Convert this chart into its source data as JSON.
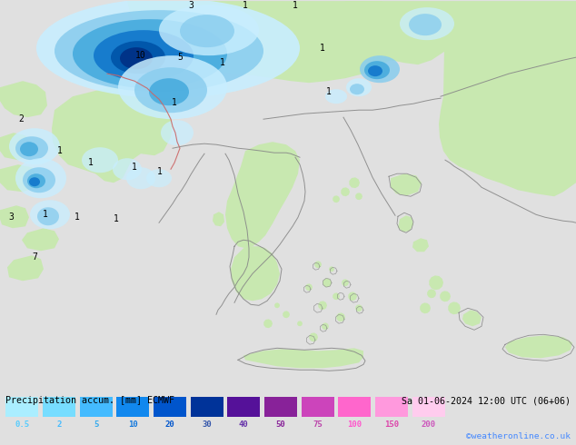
{
  "title_left": "Precipitation accum. [mm] ECMWF",
  "title_right": "Sa 01-06-2024 12:00 UTC (06+06)",
  "credit": "©weatheronline.co.uk",
  "legend_values": [
    "0.5",
    "2",
    "5",
    "10",
    "20",
    "30",
    "40",
    "50",
    "75",
    "100",
    "150",
    "200"
  ],
  "legend_colors": [
    "#aaeeff",
    "#77ddff",
    "#44bbff",
    "#1188ee",
    "#0055cc",
    "#003399",
    "#551199",
    "#882299",
    "#cc44bb",
    "#ff66cc",
    "#ff99dd",
    "#ffccee"
  ],
  "leg_text_colors": [
    "#55ccff",
    "#44bbff",
    "#33aaee",
    "#1177dd",
    "#0055cc",
    "#3355aa",
    "#6633aa",
    "#882299",
    "#bb44aa",
    "#ff55cc",
    "#dd44aa",
    "#cc55bb"
  ],
  "background_color": "#e0e0e0",
  "sea_color": "#d4d8dc",
  "land_green": "#c8e8b0",
  "land_light": "#ddf0cc",
  "precip_lightest": "#c8eeff",
  "precip_light": "#88ccee",
  "precip_mid": "#44aadd",
  "precip_dark": "#1177cc",
  "precip_darker": "#0055aa",
  "precip_darkest": "#003388",
  "border_color": "#888888",
  "border_red": "#cc4444",
  "fig_width": 6.34,
  "fig_height": 4.9,
  "dpi": 100
}
